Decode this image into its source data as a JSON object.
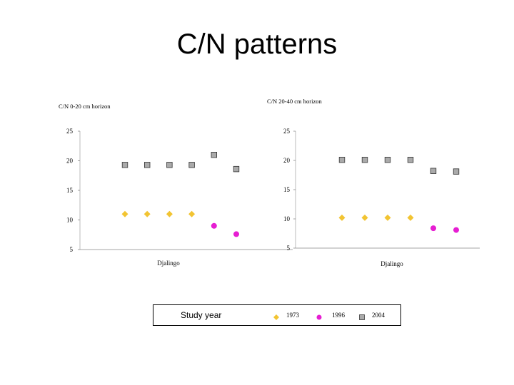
{
  "page": {
    "title": "C/N patterns"
  },
  "legend": {
    "title": "Study year",
    "items": [
      {
        "label": "1973",
        "color": "#f2c432",
        "shape": "diamond"
      },
      {
        "label": "1996",
        "color": "#e61ed2",
        "shape": "circle"
      },
      {
        "label": "2004",
        "color": "#aaaaaa",
        "shape": "square"
      }
    ]
  },
  "chart_data": [
    {
      "type": "scatter",
      "title": "C/N 0-20 cm horizon",
      "xlabel": "Djalingo",
      "ylabel": "",
      "ylim": [
        5,
        25
      ],
      "yticks": [
        25,
        20,
        15,
        10,
        5
      ],
      "series": [
        {
          "name": "1973",
          "x": [
            1,
            2,
            3,
            4
          ],
          "y": [
            11,
            11,
            11,
            11
          ]
        },
        {
          "name": "1996",
          "x": [
            5,
            6
          ],
          "y": [
            9,
            7.6
          ]
        },
        {
          "name": "2004",
          "x": [
            1,
            2,
            3,
            4,
            5,
            6
          ],
          "y": [
            19.3,
            19.3,
            19.3,
            19.3,
            21,
            18.6
          ]
        }
      ]
    },
    {
      "type": "scatter",
      "title": "C/N 20-40 cm horizon",
      "xlabel": "Djalingo",
      "ylabel": "",
      "ylim": [
        5,
        25
      ],
      "yticks": [
        25,
        20,
        15,
        10,
        5
      ],
      "series": [
        {
          "name": "1973",
          "x": [
            1,
            2,
            3,
            4
          ],
          "y": [
            10.2,
            10.2,
            10.2,
            10.2
          ]
        },
        {
          "name": "1996",
          "x": [
            5,
            6
          ],
          "y": [
            8.4,
            8.1
          ]
        },
        {
          "name": "2004",
          "x": [
            1,
            2,
            3,
            4,
            5,
            6
          ],
          "y": [
            20.1,
            20.1,
            20.1,
            20.1,
            18.2,
            18.1
          ]
        }
      ]
    }
  ]
}
